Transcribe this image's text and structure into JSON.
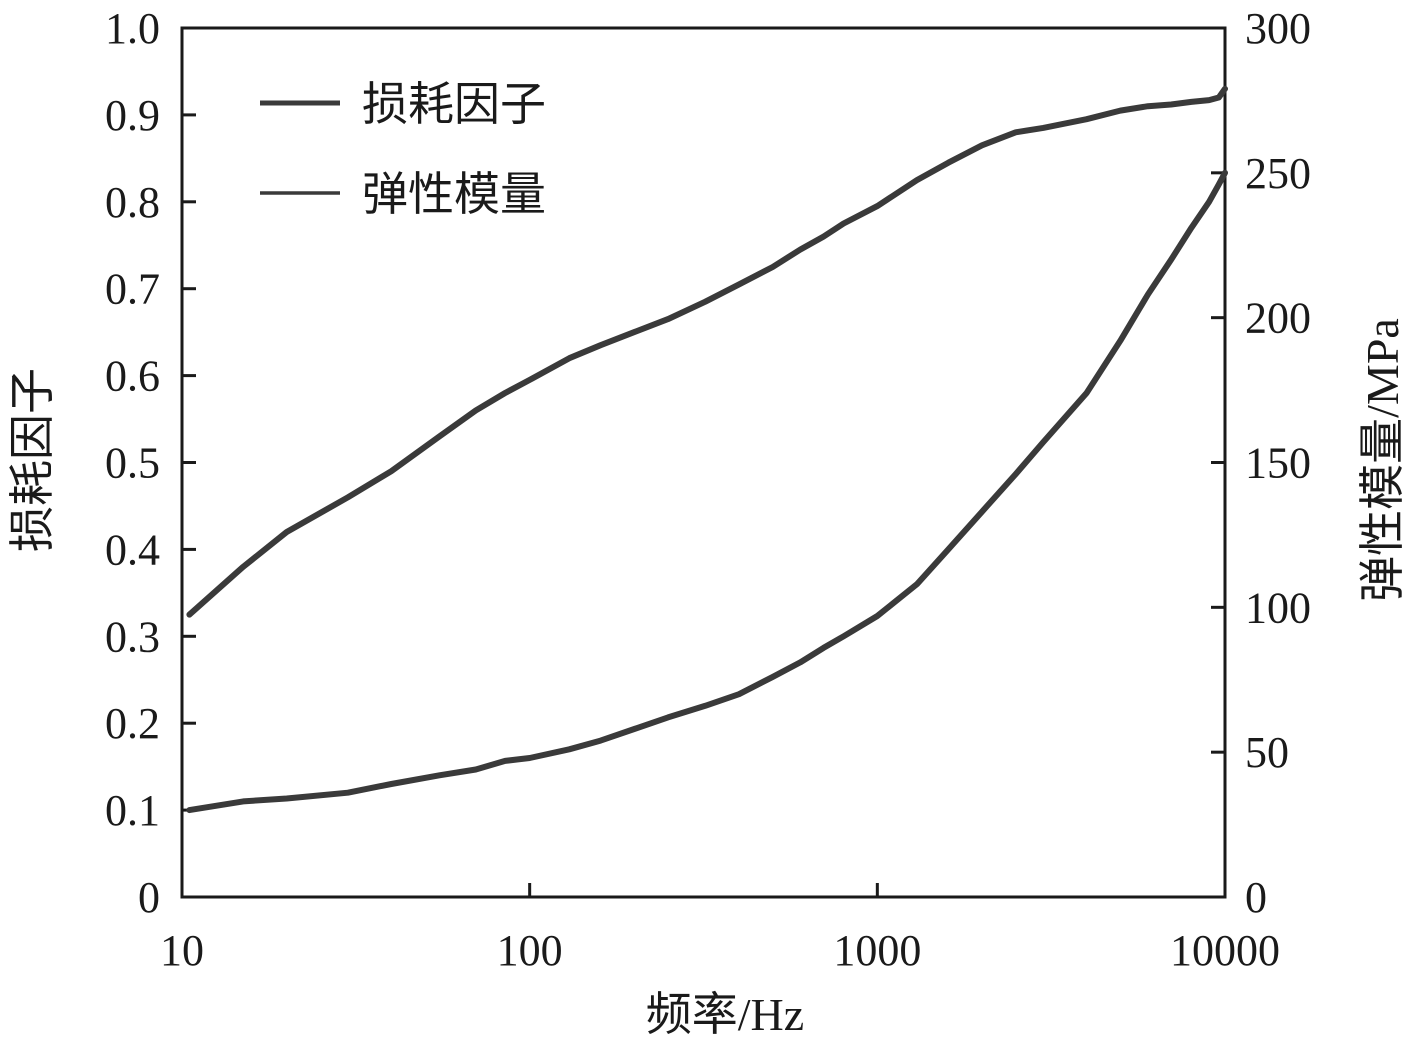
{
  "chart_data": {
    "type": "line",
    "x_scale": "log",
    "xlabel": "频率/Hz",
    "ylabel_left": "损耗因子",
    "ylabel_right": "弹性模量/MPa",
    "xlim": [
      10,
      10000
    ],
    "ylim_left": [
      0,
      1.0
    ],
    "ylim_right": [
      0,
      300
    ],
    "x_ticks": [
      "10",
      "100",
      "1000",
      "10000"
    ],
    "y_left_ticks": [
      "0",
      "0.1",
      "0.2",
      "0.3",
      "0.4",
      "0.5",
      "0.6",
      "0.7",
      "0.8",
      "0.9",
      "1.0"
    ],
    "y_right_ticks": [
      "0",
      "50",
      "100",
      "150",
      "200",
      "250",
      "300"
    ],
    "legend_position": "top-left",
    "grid": false,
    "line_color": "#3a3a3a",
    "series": [
      {
        "name": "损耗因子",
        "axis": "left",
        "x": [
          10.5,
          15,
          20,
          30,
          40,
          55,
          70,
          85,
          100,
          130,
          160,
          200,
          250,
          320,
          400,
          500,
          600,
          700,
          800,
          1000,
          1300,
          1600,
          2000,
          2500,
          3000,
          4000,
          5000,
          6000,
          7000,
          8000,
          9000,
          9600,
          10000
        ],
        "y": [
          0.325,
          0.38,
          0.42,
          0.46,
          0.49,
          0.53,
          0.56,
          0.58,
          0.595,
          0.62,
          0.635,
          0.65,
          0.665,
          0.685,
          0.705,
          0.725,
          0.745,
          0.76,
          0.775,
          0.795,
          0.825,
          0.845,
          0.865,
          0.88,
          0.885,
          0.895,
          0.905,
          0.91,
          0.912,
          0.915,
          0.917,
          0.92,
          0.93
        ]
      },
      {
        "name": "弹性模量",
        "axis": "right",
        "x": [
          10.5,
          15,
          20,
          30,
          40,
          55,
          70,
          85,
          100,
          130,
          160,
          200,
          250,
          320,
          400,
          500,
          600,
          700,
          800,
          1000,
          1300,
          1600,
          2000,
          2500,
          3000,
          4000,
          5000,
          6000,
          7000,
          8000,
          9000,
          9600,
          10000
        ],
        "y": [
          30,
          33,
          34,
          36,
          39,
          42,
          44,
          47,
          48,
          51,
          54,
          58,
          62,
          66,
          70,
          76,
          81,
          86,
          90,
          97,
          108,
          120,
          133,
          146,
          157,
          174,
          192,
          208,
          220,
          231,
          240,
          246,
          250
        ]
      }
    ]
  }
}
